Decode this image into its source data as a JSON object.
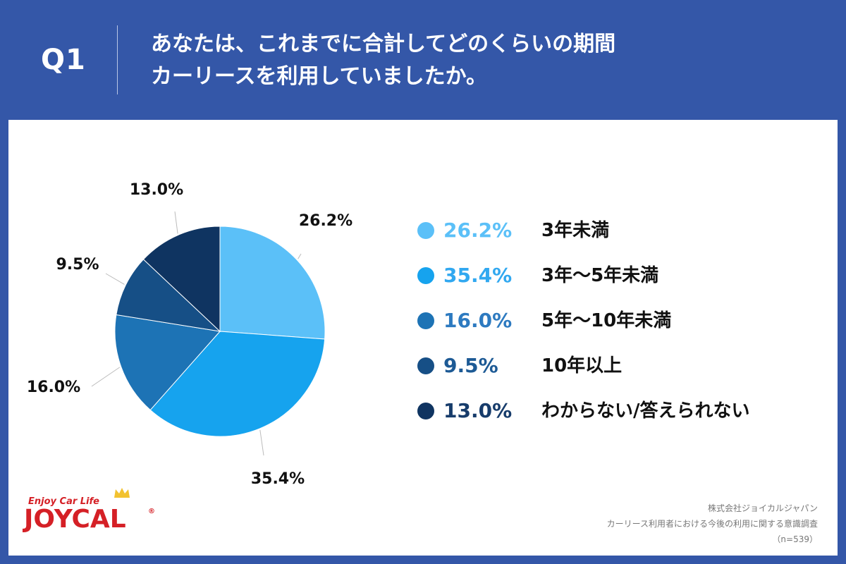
{
  "header": {
    "question_number": "Q1",
    "question_line1": "あなたは、これまでに合計してどのくらいの期間",
    "question_line2": "カーリースを利用していましたか。"
  },
  "chart_data": {
    "type": "pie",
    "title": "",
    "start_angle_deg": 0,
    "direction": "clockwise",
    "slices": [
      {
        "label": "3年未満",
        "value": 26.2,
        "display": "26.2%",
        "color": "#5bc0f8"
      },
      {
        "label": "3年～5年未満",
        "value": 35.4,
        "display": "35.4%",
        "color": "#16a3ee"
      },
      {
        "label": "5年～10年未満",
        "value": 16.0,
        "display": "16.0%",
        "color": "#1d73b5"
      },
      {
        "label": "10年以上",
        "value": 9.5,
        "display": "9.5%",
        "color": "#164f86"
      },
      {
        "label": "わからない/答えられない",
        "value": 13.0,
        "display": "13.0%",
        "color": "#0f3461"
      }
    ],
    "legend_position": "right"
  },
  "legend_pct_colors": [
    "#5bc0f8",
    "#31a8f0",
    "#2d7ac0",
    "#1d5a95",
    "#173c6b"
  ],
  "logo": {
    "tagline": "Enjoy Car Life",
    "wordmark": "JOYCAL",
    "registered": "®"
  },
  "credit": {
    "company": "株式会社ジョイカルジャパン",
    "survey": "カーリース利用者における今後の利用に関する意識調査",
    "sample": "（n=539）"
  },
  "colors": {
    "background": "#3457a8",
    "panel": "#ffffff",
    "brand_red": "#d52026"
  }
}
